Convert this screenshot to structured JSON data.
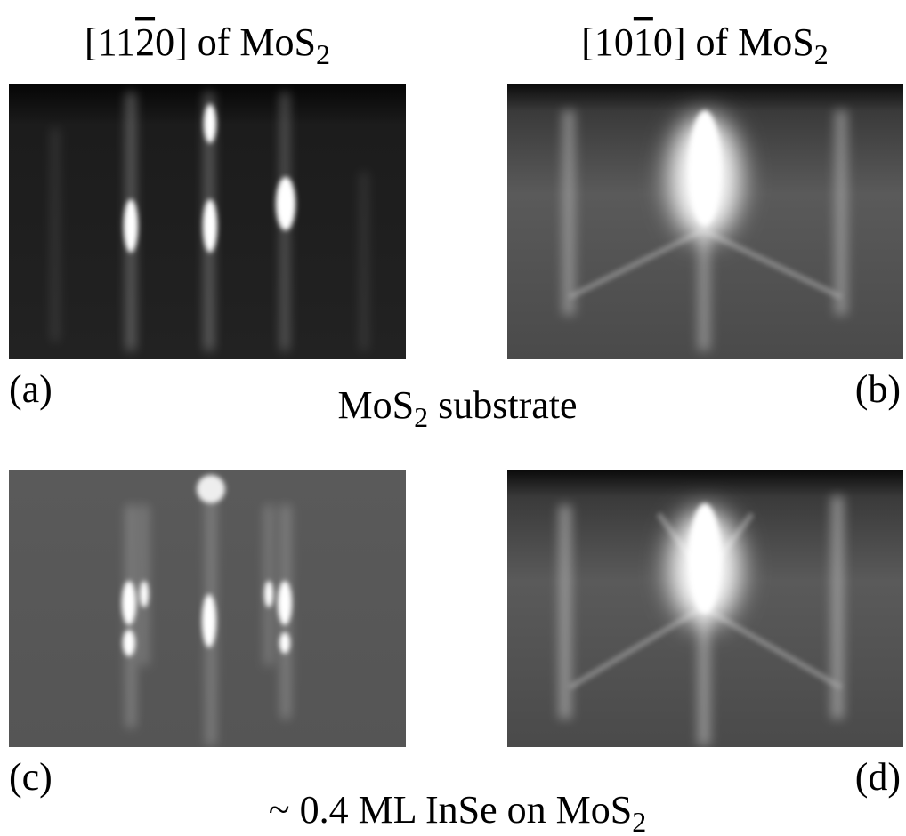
{
  "panels": [
    {
      "header": {
        "before": "[11",
        "bar": "2",
        "after": "0] of MoS",
        "sub": "2"
      },
      "label": "(a)"
    },
    {
      "header": {
        "before": "[10",
        "bar": "1",
        "after": "0] of MoS",
        "sub": "2"
      },
      "label": "(b)"
    },
    {
      "label": "(c)"
    },
    {
      "label": "(d)"
    }
  ],
  "captions": [
    {
      "before": "MoS",
      "sub": "2",
      "after": " substrate"
    },
    {
      "before": "~ 0.4 ML InSe on MoS",
      "sub": "2"
    }
  ]
}
